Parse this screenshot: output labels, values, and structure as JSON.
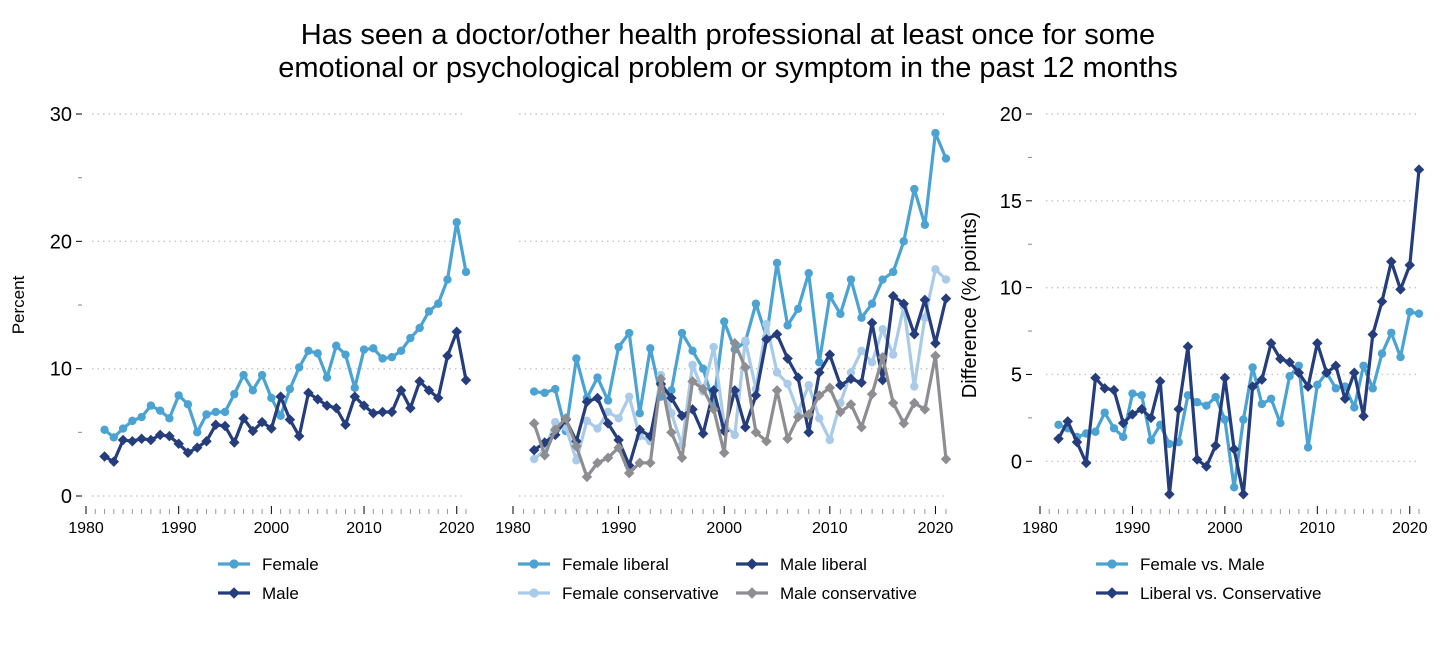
{
  "title_lines": [
    "Has seen a doctor/other health professional at least once for some",
    "emotional or psychological problem or symptom in the past 12 months"
  ],
  "colors": {
    "female": "#4ba3d3",
    "male": "#253d7c",
    "female_conservative": "#a9cbe8",
    "male_conservative": "#8e8e92",
    "grid": "#c8c8c8",
    "axis": "#000000"
  },
  "chart_data": [
    {
      "type": "line",
      "panel": "left",
      "title": "",
      "xlabel": "",
      "ylabel": "Percent",
      "xlim": [
        1980,
        2021
      ],
      "ylim": [
        0,
        30
      ],
      "xticks": [
        1980,
        1990,
        2000,
        2010,
        2020
      ],
      "yticks": [
        0,
        10,
        20,
        30
      ],
      "grid": true,
      "legend_position": "bottom",
      "x": [
        1982,
        1983,
        1984,
        1985,
        1986,
        1987,
        1988,
        1989,
        1990,
        1991,
        1992,
        1993,
        1994,
        1995,
        1996,
        1997,
        1998,
        1999,
        2000,
        2001,
        2002,
        2003,
        2004,
        2005,
        2006,
        2007,
        2008,
        2009,
        2010,
        2011,
        2012,
        2013,
        2014,
        2015,
        2016,
        2017,
        2018,
        2019,
        2020,
        2021
      ],
      "series": [
        {
          "name": "Female",
          "color": "#4ba3d3",
          "marker": "circle",
          "values": [
            5.2,
            4.6,
            5.3,
            5.9,
            6.2,
            7.1,
            6.7,
            6.1,
            7.9,
            7.2,
            5.0,
            6.4,
            6.6,
            6.6,
            8.0,
            9.5,
            8.3,
            9.5,
            7.7,
            6.3,
            8.4,
            10.1,
            11.4,
            11.2,
            9.3,
            11.8,
            11.1,
            8.5,
            11.5,
            11.6,
            10.8,
            10.9,
            11.4,
            12.4,
            13.2,
            14.5,
            15.1,
            17.0,
            21.5,
            17.6
          ]
        },
        {
          "name": "Male",
          "color": "#253d7c",
          "marker": "diamond",
          "values": [
            3.1,
            2.7,
            4.4,
            4.3,
            4.5,
            4.4,
            4.8,
            4.7,
            4.1,
            3.4,
            3.8,
            4.3,
            5.6,
            5.5,
            4.2,
            6.1,
            5.1,
            5.8,
            5.3,
            7.8,
            6.0,
            4.7,
            8.1,
            7.6,
            7.1,
            6.9,
            5.6,
            7.8,
            7.1,
            6.5,
            6.6,
            6.6,
            8.3,
            6.9,
            9.0,
            8.3,
            7.7,
            11.0,
            12.9,
            9.1
          ]
        }
      ]
    },
    {
      "type": "line",
      "panel": "middle",
      "title": "",
      "xlabel": "",
      "ylabel": "",
      "xlim": [
        1980,
        2021
      ],
      "ylim": [
        0,
        30
      ],
      "xticks": [
        1980,
        1990,
        2000,
        2010,
        2020
      ],
      "grid": true,
      "legend_position": "bottom",
      "x": [
        1982,
        1983,
        1984,
        1985,
        1986,
        1987,
        1988,
        1989,
        1990,
        1991,
        1992,
        1993,
        1994,
        1995,
        1996,
        1997,
        1998,
        1999,
        2000,
        2001,
        2002,
        2003,
        2004,
        2005,
        2006,
        2007,
        2008,
        2009,
        2010,
        2011,
        2012,
        2013,
        2014,
        2015,
        2016,
        2017,
        2018,
        2019,
        2020,
        2021
      ],
      "series": [
        {
          "name": "Female liberal",
          "color": "#4ba3d3",
          "marker": "circle",
          "values": [
            8.2,
            8.1,
            8.4,
            5.1,
            10.8,
            7.7,
            9.3,
            7.5,
            11.7,
            12.8,
            6.5,
            11.6,
            7.8,
            8.3,
            12.8,
            11.4,
            10.0,
            7.3,
            13.7,
            11.5,
            12.1,
            15.1,
            12.5,
            18.3,
            13.4,
            14.7,
            17.5,
            10.5,
            15.7,
            14.3,
            17.0,
            14.0,
            15.1,
            17.0,
            17.6,
            20.0,
            24.1,
            21.3,
            28.5,
            26.5
          ]
        },
        {
          "name": "Female conservative",
          "color": "#a9cbe8",
          "marker": "circle",
          "values": [
            2.9,
            3.6,
            5.8,
            5.4,
            2.8,
            5.9,
            5.3,
            6.6,
            6.1,
            7.8,
            4.7,
            4.3,
            9.5,
            6.5,
            4.0,
            10.3,
            8.2,
            11.7,
            5.6,
            4.8,
            12.2,
            8.4,
            13.5,
            9.7,
            8.8,
            6.6,
            8.7,
            6.1,
            4.4,
            7.3,
            9.7,
            11.4,
            10.5,
            13.1,
            11.1,
            14.9,
            8.6,
            14.0,
            17.8,
            17.0
          ]
        },
        {
          "name": "Male liberal",
          "color": "#253d7c",
          "marker": "diamond",
          "values": [
            3.6,
            4.2,
            4.8,
            6.0,
            4.3,
            7.4,
            7.7,
            5.7,
            4.4,
            2.4,
            5.2,
            4.7,
            8.8,
            7.7,
            6.3,
            6.8,
            4.9,
            8.3,
            5.1,
            8.3,
            5.4,
            7.9,
            12.3,
            12.7,
            10.8,
            9.3,
            5.0,
            9.7,
            11.1,
            8.7,
            9.2,
            8.9,
            13.6,
            9.1,
            15.7,
            15.1,
            12.7,
            15.4,
            12.0,
            15.5
          ]
        },
        {
          "name": "Male conservative",
          "color": "#8e8e92",
          "marker": "diamond",
          "values": [
            5.7,
            3.2,
            5.2,
            6.1,
            3.9,
            1.5,
            2.6,
            3.0,
            3.8,
            1.8,
            2.6,
            2.6,
            9.2,
            5.0,
            3.0,
            9.0,
            8.4,
            6.8,
            3.4,
            12.0,
            10.1,
            5.0,
            4.3,
            8.3,
            4.5,
            6.2,
            6.4,
            7.9,
            8.5,
            6.6,
            7.2,
            5.4,
            8.0,
            10.9,
            7.3,
            5.7,
            7.3,
            6.8,
            11.0,
            2.9
          ]
        }
      ]
    },
    {
      "type": "line",
      "panel": "right",
      "title": "",
      "xlabel": "",
      "ylabel": "Difference (% points)",
      "xlim": [
        1980,
        2021
      ],
      "ylim": [
        -2,
        20
      ],
      "xticks": [
        1980,
        1990,
        2000,
        2010,
        2020
      ],
      "yticks": [
        0,
        5,
        10,
        15,
        20
      ],
      "grid": true,
      "legend_position": "bottom",
      "x": [
        1982,
        1983,
        1984,
        1985,
        1986,
        1987,
        1988,
        1989,
        1990,
        1991,
        1992,
        1993,
        1994,
        1995,
        1996,
        1997,
        1998,
        1999,
        2000,
        2001,
        2002,
        2003,
        2004,
        2005,
        2006,
        2007,
        2008,
        2009,
        2010,
        2011,
        2012,
        2013,
        2014,
        2015,
        2016,
        2017,
        2018,
        2019,
        2020,
        2021
      ],
      "series": [
        {
          "name": "Female vs. Male",
          "color": "#4ba3d3",
          "marker": "circle",
          "values": [
            2.1,
            1.9,
            1.4,
            1.6,
            1.7,
            2.8,
            1.9,
            1.4,
            3.9,
            3.8,
            1.2,
            2.1,
            1.0,
            1.1,
            3.8,
            3.4,
            3.2,
            3.7,
            2.4,
            -1.5,
            2.4,
            5.4,
            3.3,
            3.6,
            2.2,
            4.9,
            5.5,
            0.8,
            4.4,
            5.1,
            4.2,
            4.3,
            3.1,
            5.5,
            4.2,
            6.2,
            7.4,
            6.0,
            8.6,
            8.5
          ]
        },
        {
          "name": "Liberal vs. Conservative",
          "color": "#253d7c",
          "marker": "diamond",
          "values": [
            1.3,
            2.3,
            1.1,
            -0.1,
            4.8,
            4.2,
            4.1,
            2.2,
            2.7,
            3.0,
            2.5,
            4.6,
            -1.9,
            3.0,
            6.6,
            0.1,
            -0.3,
            0.9,
            4.8,
            0.7,
            -1.9,
            4.3,
            4.7,
            6.8,
            5.9,
            5.7,
            5.1,
            4.3,
            6.8,
            5.1,
            5.5,
            3.6,
            5.1,
            2.6,
            7.3,
            9.2,
            11.5,
            9.9,
            11.3,
            16.8
          ]
        }
      ]
    }
  ]
}
